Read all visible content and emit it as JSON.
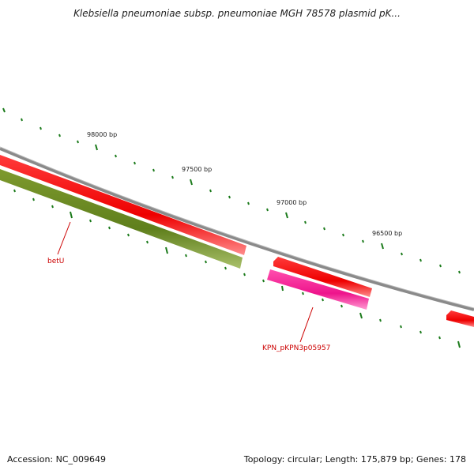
{
  "title": "Klebsiella pneumoniae subsp. pneumoniae MGH 78578 plasmid pK...",
  "footer": {
    "accession": "Accession: NC_009649",
    "summary": "Topology: circular; Length: 175,879 bp; Genes: 178"
  },
  "scale_labels": [
    "98000 bp",
    "97500 bp",
    "97000 bp",
    "96500 bp"
  ],
  "genes": [
    {
      "label": "betU",
      "color": "#ff0000"
    },
    {
      "label": "KPN_pKPN3p05957",
      "color": "#ff1493"
    }
  ],
  "colors": {
    "backbone": "#8a8a8a",
    "forward_gene": "#ff0000",
    "reverse_gene_olive": "#6b8e23",
    "reverse_gene_pink": "#ff1493",
    "tick": "#1a7a1a"
  }
}
